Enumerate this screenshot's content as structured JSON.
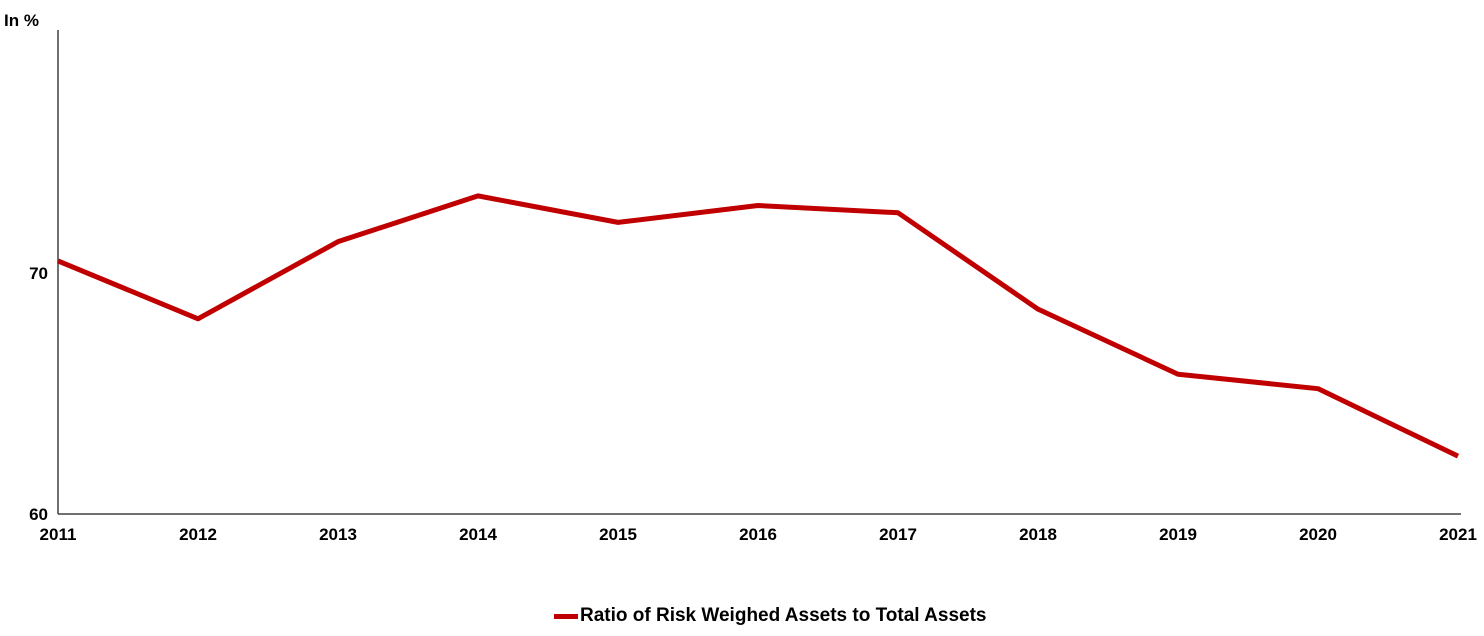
{
  "chart": {
    "unit_label": "In %",
    "legend": {
      "label": "Ratio of Risk Weighed Assets to Total Assets",
      "swatch_color": "#c00000"
    }
  },
  "chart_data": {
    "type": "line",
    "title": "",
    "xlabel": "",
    "ylabel": "In %",
    "categories": [
      "2011",
      "2012",
      "2013",
      "2014",
      "2015",
      "2016",
      "2017",
      "2018",
      "2019",
      "2020",
      "2021"
    ],
    "series": [
      {
        "name": "Ratio of Risk Weighed Assets to Total Assets",
        "color": "#c00000",
        "values": [
          70.5,
          68.1,
          71.3,
          73.2,
          72.1,
          72.8,
          72.5,
          68.5,
          65.8,
          65.2,
          62.4
        ]
      }
    ],
    "ylim": [
      60,
      80
    ],
    "yticks": [
      60,
      70
    ],
    "grid": false,
    "legend_position": "bottom",
    "axis_color": "#404040",
    "text_color": "#000000"
  }
}
